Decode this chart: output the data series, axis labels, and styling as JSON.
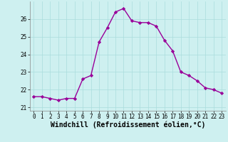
{
  "x": [
    0,
    1,
    2,
    3,
    4,
    5,
    6,
    7,
    8,
    9,
    10,
    11,
    12,
    13,
    14,
    15,
    16,
    17,
    18,
    19,
    20,
    21,
    22,
    23
  ],
  "y": [
    21.6,
    21.6,
    21.5,
    21.4,
    21.5,
    21.5,
    22.6,
    22.8,
    24.7,
    25.5,
    26.4,
    26.6,
    25.9,
    25.8,
    25.8,
    25.6,
    24.8,
    24.2,
    23.0,
    22.8,
    22.5,
    22.1,
    22.0,
    21.8
  ],
  "line_color": "#990099",
  "marker": "D",
  "markersize": 2.2,
  "linewidth": 1.0,
  "xlabel": "Windchill (Refroidissement éolien,°C)",
  "xlabel_fontsize": 7,
  "ylim": [
    20.8,
    27.0
  ],
  "yticks": [
    21,
    22,
    23,
    24,
    25,
    26
  ],
  "xticks": [
    0,
    1,
    2,
    3,
    4,
    5,
    6,
    7,
    8,
    9,
    10,
    11,
    12,
    13,
    14,
    15,
    16,
    17,
    18,
    19,
    20,
    21,
    22,
    23
  ],
  "bg_color": "#cef0f0",
  "grid_color": "#aadddd",
  "tick_fontsize": 5.5,
  "fig_bg": "#cef0f0",
  "spine_color": "#888888"
}
